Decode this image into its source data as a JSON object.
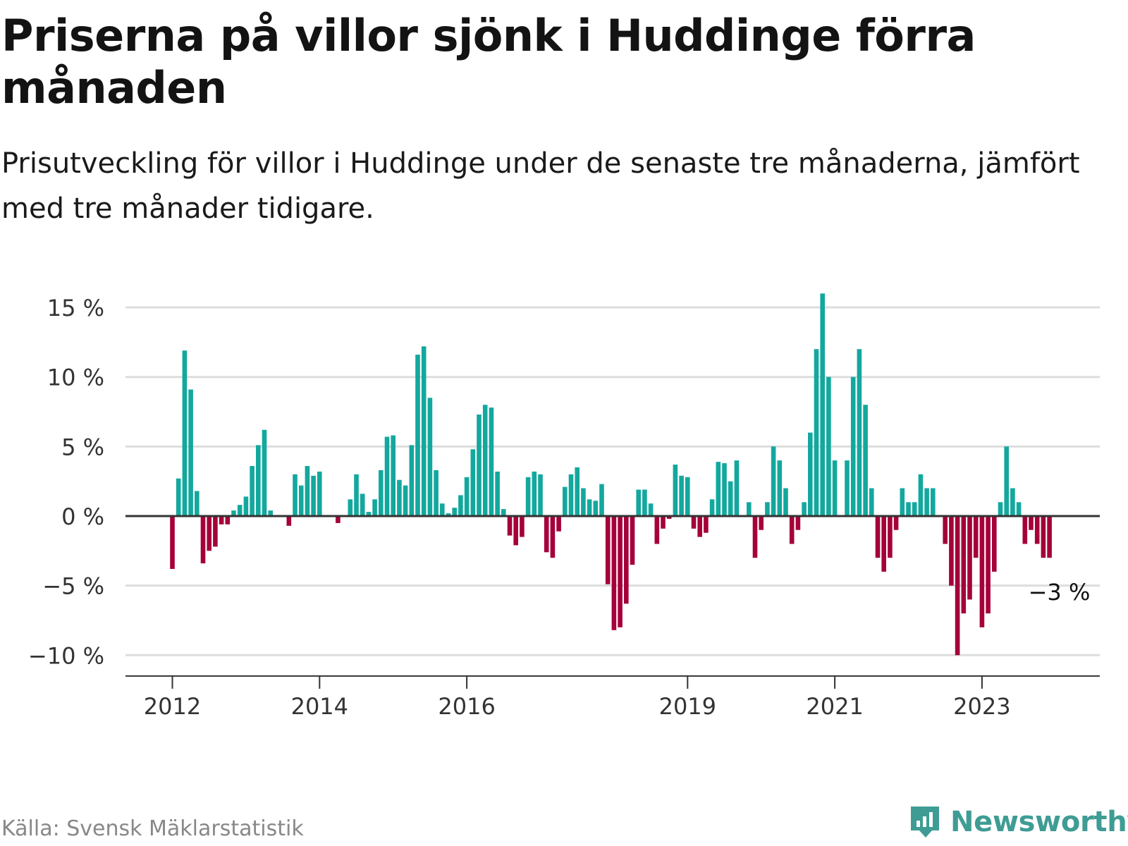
{
  "title": "Priserna på villor sjönk i Huddinge förra månaden",
  "subtitle": "Prisutveckling för villor i Huddinge under de senaste tre månaderna, jämfört med tre månader tidigare.",
  "source": "Källa: Svensk Mäklarstatistik",
  "brand": {
    "name": "Newsworthy",
    "icon": "newsworthy-logo-icon"
  },
  "colors": {
    "positive": "#13a89e",
    "negative": "#a5003a",
    "grid": "#dddddd",
    "axis": "#333333",
    "brand": "#3f9c95"
  },
  "chart_data": {
    "type": "bar",
    "title": "Priserna på villor sjönk i Huddinge förra månaden",
    "ylabel": "",
    "xlabel": "",
    "ylim": [
      -11.5,
      16
    ],
    "yticks": [
      15,
      10,
      5,
      0,
      -5,
      -10
    ],
    "ytick_labels": [
      "15 %",
      "10 %",
      "5 %",
      "0 %",
      "−5 %",
      "−10 %"
    ],
    "xticks": [
      {
        "label": "2012",
        "index": 0
      },
      {
        "label": "2014",
        "index": 24
      },
      {
        "label": "2016",
        "index": 48
      },
      {
        "label": "2019",
        "index": 84
      },
      {
        "label": "2021",
        "index": 108
      },
      {
        "label": "2023",
        "index": 132
      }
    ],
    "start": "2012-01",
    "unit": "%",
    "annotation": {
      "label": "−3 %",
      "value": -3
    },
    "values": [
      -3.8,
      2.7,
      11.9,
      9.1,
      1.8,
      -3.4,
      -2.5,
      -2.2,
      -0.6,
      -0.6,
      0.4,
      0.8,
      1.4,
      3.6,
      5.1,
      6.2,
      0.4,
      0,
      0,
      -0.7,
      3.0,
      2.2,
      3.6,
      2.9,
      3.2,
      0,
      0,
      -0.5,
      0,
      1.2,
      3.0,
      1.6,
      0.3,
      1.2,
      3.3,
      5.7,
      5.8,
      2.6,
      2.2,
      5.1,
      11.6,
      12.2,
      8.5,
      3.3,
      0.9,
      0.2,
      0.6,
      1.5,
      2.8,
      4.8,
      7.3,
      8.0,
      7.8,
      3.2,
      0.5,
      -1.4,
      -2.1,
      -1.5,
      2.8,
      3.2,
      3.0,
      -2.6,
      -3.0,
      -1.1,
      2.1,
      3.0,
      3.5,
      2.0,
      1.2,
      1.1,
      2.3,
      -4.9,
      -8.2,
      -8.0,
      -6.3,
      -3.5,
      1.9,
      1.9,
      0.9,
      -2.0,
      -0.9,
      -0.2,
      3.7,
      2.9,
      2.8,
      -0.9,
      -1.5,
      -1.2,
      1.2,
      3.9,
      3.8,
      2.5,
      4.0,
      0,
      1.0,
      -3.0,
      -1.0,
      1.0,
      5.0,
      4.0,
      2.0,
      -2.0,
      -1.0,
      1.0,
      6.0,
      12.0,
      16.0,
      10.0,
      4.0,
      0,
      4.0,
      10.0,
      12.0,
      8.0,
      2.0,
      -3.0,
      -4.0,
      -3.0,
      -1.0,
      2.0,
      1.0,
      1.0,
      3.0,
      2.0,
      2.0,
      0,
      -2.0,
      -5.0,
      -10.0,
      -7.0,
      -6.0,
      -3.0,
      -8.0,
      -7.0,
      -4.0,
      1.0,
      5.0,
      2.0,
      1.0,
      -2.0,
      -1.0,
      -2.0,
      -3.0,
      -3.0
    ]
  }
}
